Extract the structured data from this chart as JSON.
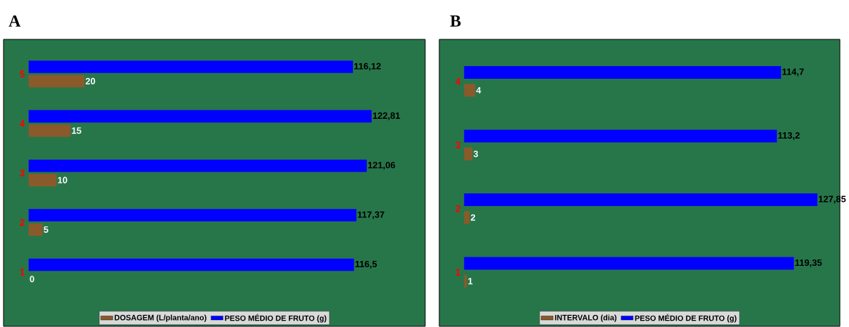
{
  "chart_data": [
    {
      "type": "bar",
      "orientation": "horizontal",
      "title": "A",
      "categories": [
        "5",
        "4",
        "3",
        "2",
        "1"
      ],
      "xlim": [
        -9,
        142
      ],
      "tick_labels": "y",
      "legend": "bottom",
      "grid": false,
      "series": [
        {
          "name": "DOSAGEM (L/planta/ano)",
          "color": "#8b5a2b",
          "values": [
            20,
            15,
            10,
            5,
            0
          ],
          "value_labels": [
            "20",
            "15",
            "10",
            "5",
            "0"
          ]
        },
        {
          "name": "PESO MÉDIO DE FRUTO (g)",
          "color": "#0000ff",
          "values": [
            116.12,
            122.81,
            121.06,
            117.37,
            116.5
          ],
          "value_labels": [
            "116,12",
            "122,81",
            "121,06",
            "117,37",
            "116,5"
          ]
        }
      ]
    },
    {
      "type": "bar",
      "orientation": "horizontal",
      "title": "B",
      "categories": [
        "4",
        "3",
        "2",
        "1"
      ],
      "xlim": [
        -9,
        136
      ],
      "tick_labels": "y",
      "legend": "bottom",
      "grid": false,
      "series": [
        {
          "name": "INTERVALO (dia)",
          "color": "#8b5a2b",
          "values": [
            4,
            3,
            2,
            1
          ],
          "value_labels": [
            "4",
            "3",
            "2",
            "1"
          ]
        },
        {
          "name": "PESO MÉDIO DE FRUTO (g)",
          "color": "#0000ff",
          "values": [
            114.7,
            113.2,
            127.85,
            119.35
          ],
          "value_labels": [
            "114,7",
            "113,2",
            "127,85",
            "119,35"
          ]
        }
      ]
    }
  ]
}
